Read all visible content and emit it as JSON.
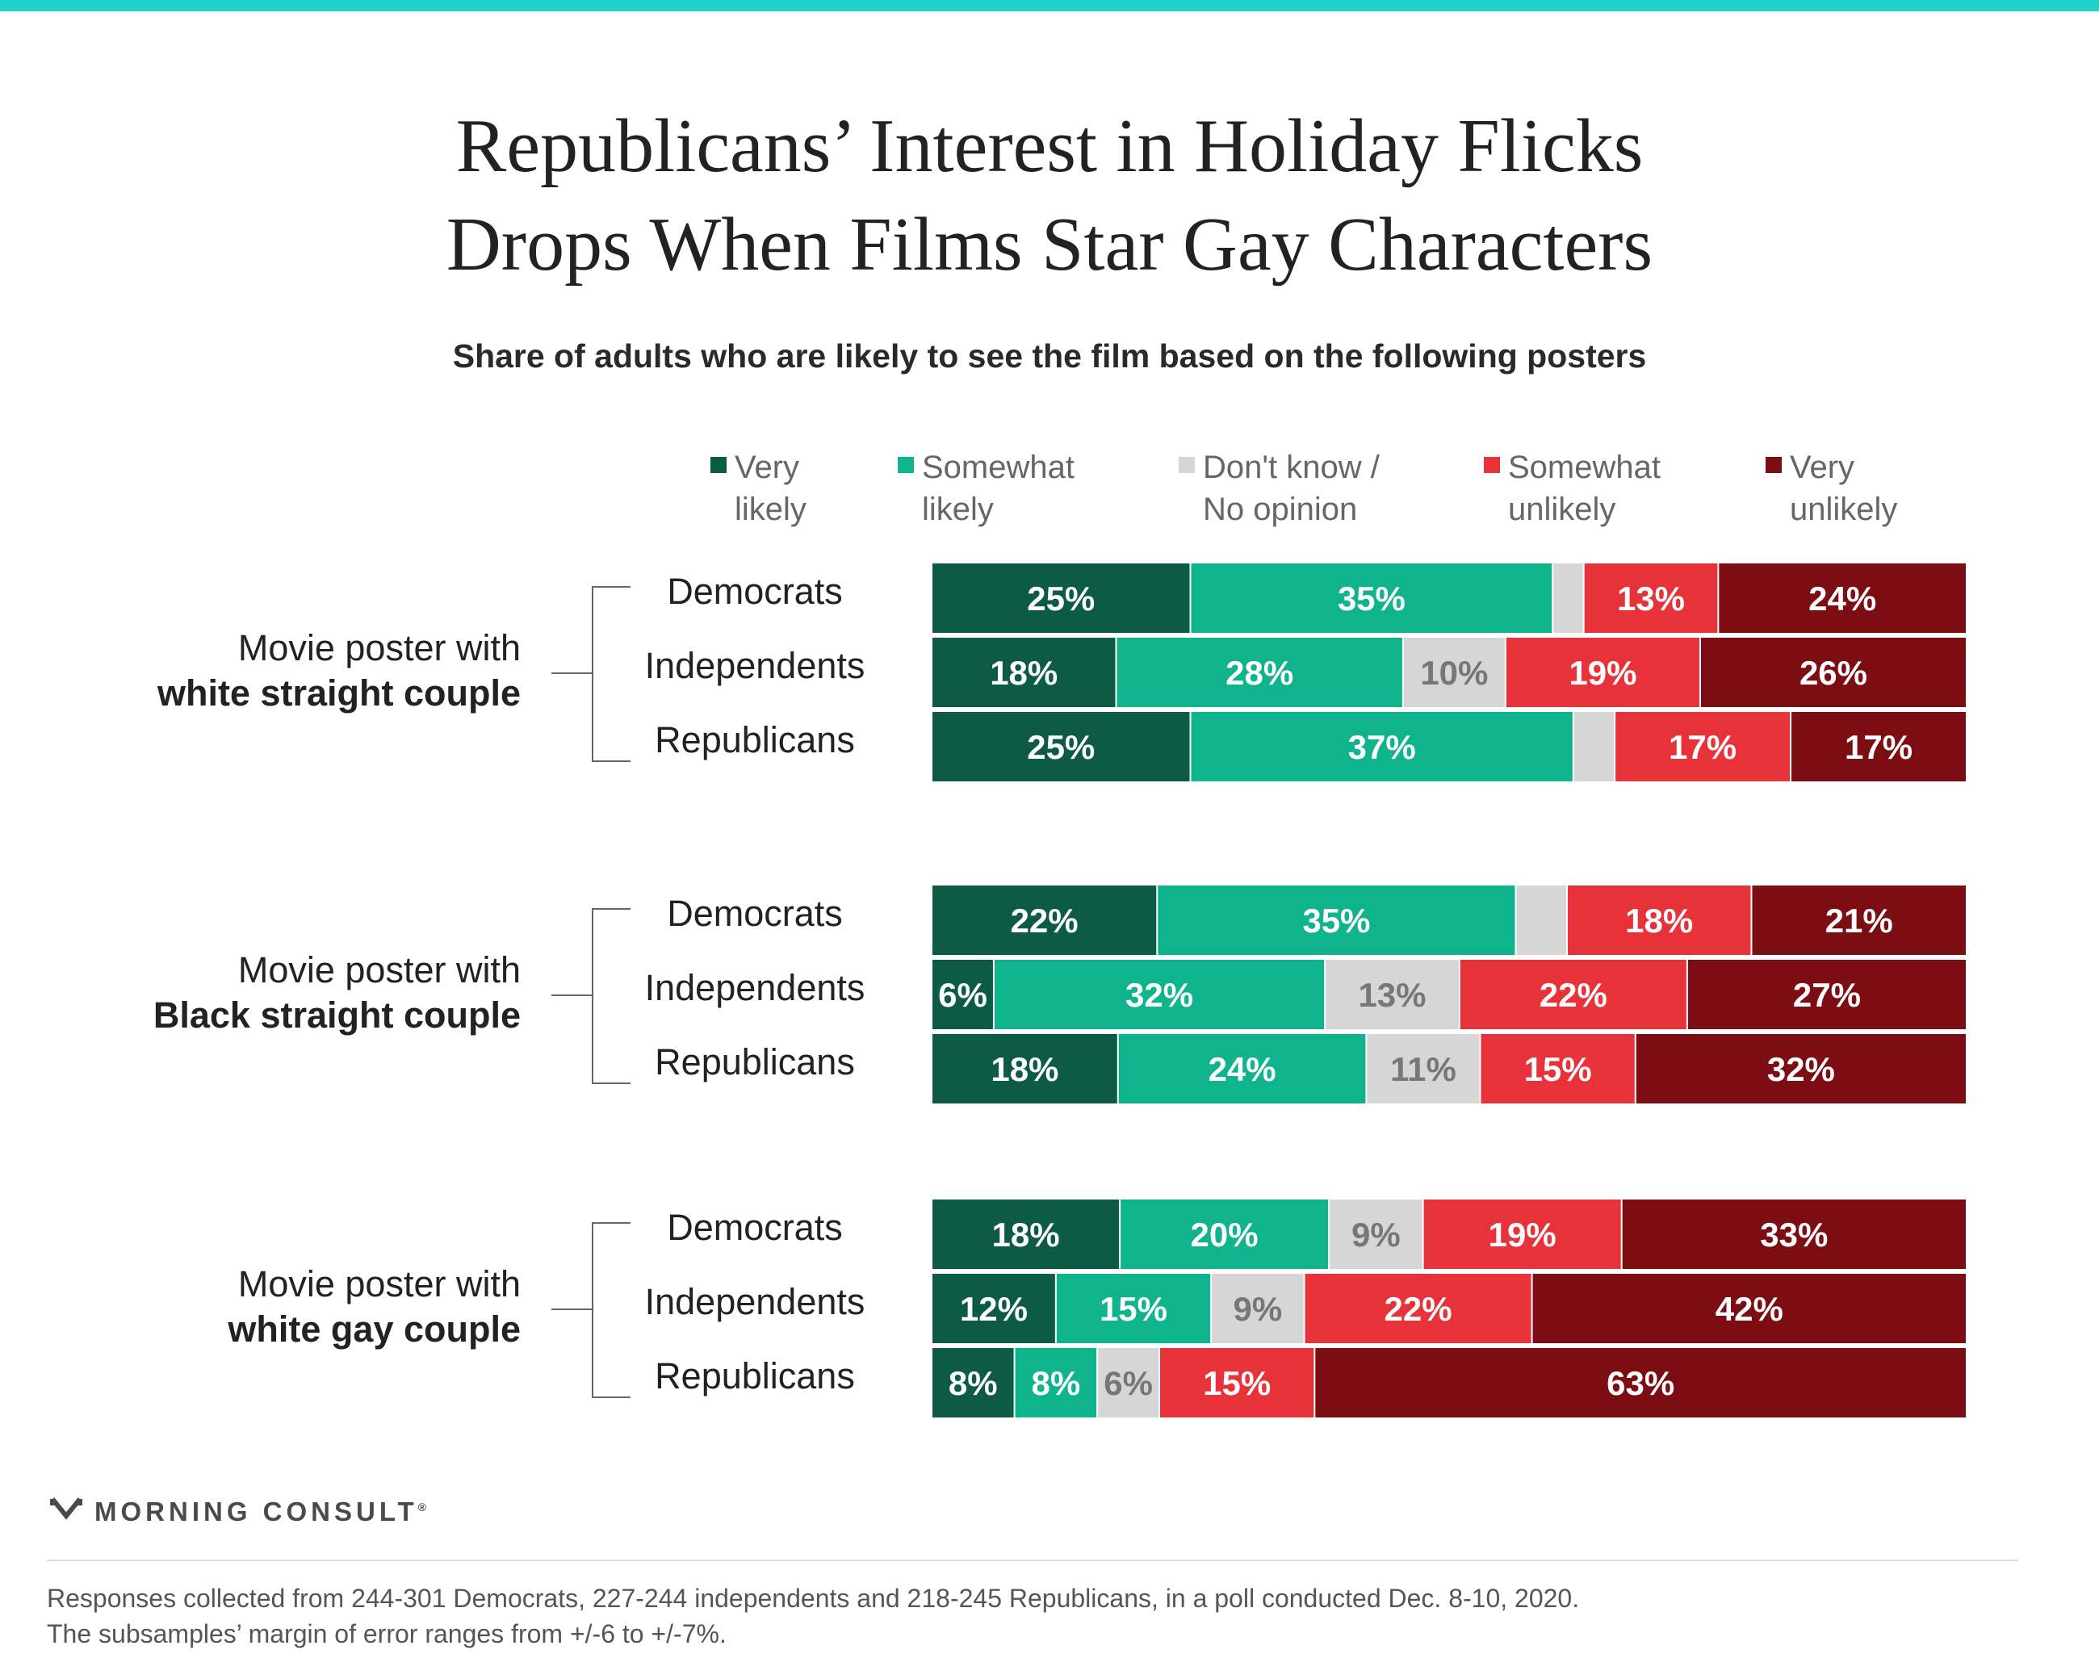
{
  "title": {
    "line1": "Republicans’ Interest in Holiday Flicks",
    "line2": "Drops When Films Star Gay Characters"
  },
  "subtitle": "Share of adults who are likely to see the film based on the following posters",
  "colors": {
    "very_likely": "#0d5a45",
    "somewhat_likely": "#0fb48c",
    "dont_know": "#d6d6d6",
    "somewhat_unlikely": "#e8323a",
    "very_unlikely": "#7c0e13",
    "accent_top": "#1dd3c7"
  },
  "chart_data": {
    "type": "bar",
    "orientation": "horizontal",
    "stacked": true,
    "normalized": true,
    "categories_order": [
      "Very likely",
      "Somewhat likely",
      "Don't know / No opinion",
      "Somewhat unlikely",
      "Very unlikely"
    ],
    "legend": [
      {
        "key": "very_likely",
        "line1": "Very",
        "line2": "likely"
      },
      {
        "key": "somewhat_likely",
        "line1": "Somewhat",
        "line2": "likely"
      },
      {
        "key": "dont_know",
        "line1": "Don't know /",
        "line2": "No opinion"
      },
      {
        "key": "somewhat_unlikely",
        "line1": "Somewhat",
        "line2": "unlikely"
      },
      {
        "key": "very_unlikely",
        "line1": "Very",
        "line2": "unlikely"
      }
    ],
    "legend_placement": "top",
    "groups": [
      {
        "label_line1": "Movie poster with",
        "label_line2": "white straight couple",
        "rows": [
          {
            "label": "Democrats",
            "values": [
              25,
              35,
              3,
              13,
              24
            ],
            "labels": [
              "25%",
              "35%",
              "",
              "13%",
              "24%"
            ]
          },
          {
            "label": "Independents",
            "values": [
              18,
              28,
              10,
              19,
              26
            ],
            "labels": [
              "18%",
              "28%",
              "10%",
              "19%",
              "26%"
            ]
          },
          {
            "label": "Republicans",
            "values": [
              25,
              37,
              4,
              17,
              17
            ],
            "labels": [
              "25%",
              "37%",
              "",
              "17%",
              "17%"
            ]
          }
        ]
      },
      {
        "label_line1": "Movie poster with",
        "label_line2": "Black straight couple",
        "rows": [
          {
            "label": "Democrats",
            "values": [
              22,
              35,
              5,
              18,
              21
            ],
            "labels": [
              "22%",
              "35%",
              "",
              "18%",
              "21%"
            ]
          },
          {
            "label": "Independents",
            "values": [
              6,
              32,
              13,
              22,
              27
            ],
            "labels": [
              "6%",
              "32%",
              "13%",
              "22%",
              "27%"
            ]
          },
          {
            "label": "Republicans",
            "values": [
              18,
              24,
              11,
              15,
              32
            ],
            "labels": [
              "18%",
              "24%",
              "11%",
              "15%",
              "32%"
            ]
          }
        ]
      },
      {
        "label_line1": "Movie poster with",
        "label_line2": "white gay couple",
        "rows": [
          {
            "label": "Democrats",
            "values": [
              18,
              20,
              9,
              19,
              33
            ],
            "labels": [
              "18%",
              "20%",
              "9%",
              "19%",
              "33%"
            ]
          },
          {
            "label": "Independents",
            "values": [
              12,
              15,
              9,
              22,
              42
            ],
            "labels": [
              "12%",
              "15%",
              "9%",
              "22%",
              "42%"
            ]
          },
          {
            "label": "Republicans",
            "values": [
              8,
              8,
              6,
              15,
              63
            ],
            "labels": [
              "8%",
              "8%",
              "6%",
              "15%",
              "63%"
            ]
          }
        ]
      }
    ]
  },
  "logo": {
    "text": "MORNING CONSULT",
    "mark": "®",
    "icon": "morning-consult-m-icon"
  },
  "footnote": {
    "line1": "Responses collected from 244-301 Democrats, 227-244 independents and 218-245 Republicans, in a poll conducted Dec. 8-10, 2020.",
    "line2": "The subsamples’ margin of error ranges from +/-6 to +/-7%."
  }
}
